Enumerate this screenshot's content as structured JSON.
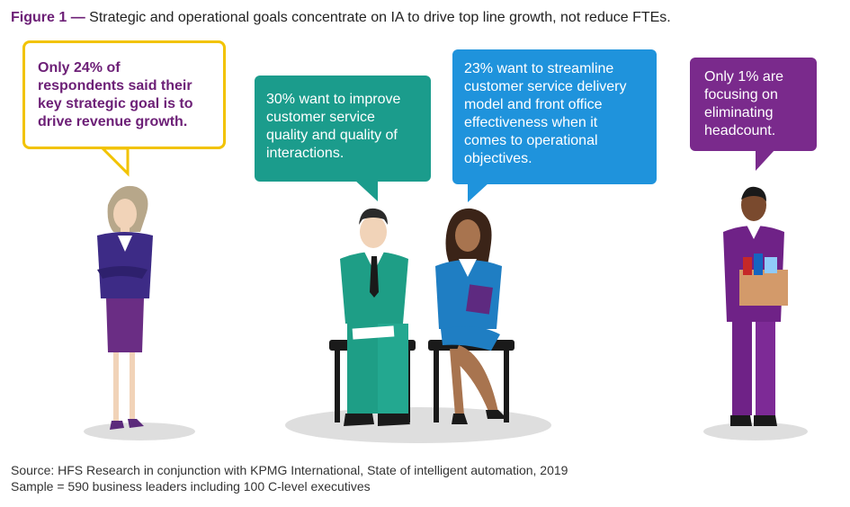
{
  "caption": {
    "figure_label": "Figure 1",
    "dash": "—",
    "text": "Strategic and operational goals concentrate on IA to drive top line growth, not reduce FTEs."
  },
  "bubbles": [
    {
      "lines": [
        "Only 24% of",
        "respondents said their",
        "key strategic goal is to",
        "drive revenue growth."
      ],
      "color": "#f2c300"
    },
    {
      "lines": [
        "30% want to improve",
        "customer service",
        "quality and quality of",
        "interactions."
      ],
      "color": "#1b9c8c"
    },
    {
      "lines": [
        "23% want to streamline",
        "customer service delivery",
        "model and front office",
        "effectiveness when it",
        "comes to operational",
        "objectives."
      ],
      "color": "#1f93dc"
    },
    {
      "lines": [
        "Only 1% are",
        "focusing on",
        "eliminating",
        "headcount."
      ],
      "color": "#7a2a8c"
    }
  ],
  "source": {
    "line1": "Source: HFS Research in conjunction with KPMG International, State of intelligent automation, 2019",
    "line2": "Sample = 590 business leaders including 100 C-level executives"
  },
  "colors": {
    "accent_purple": "#6d2077",
    "shadow": "#d9d9d9"
  }
}
